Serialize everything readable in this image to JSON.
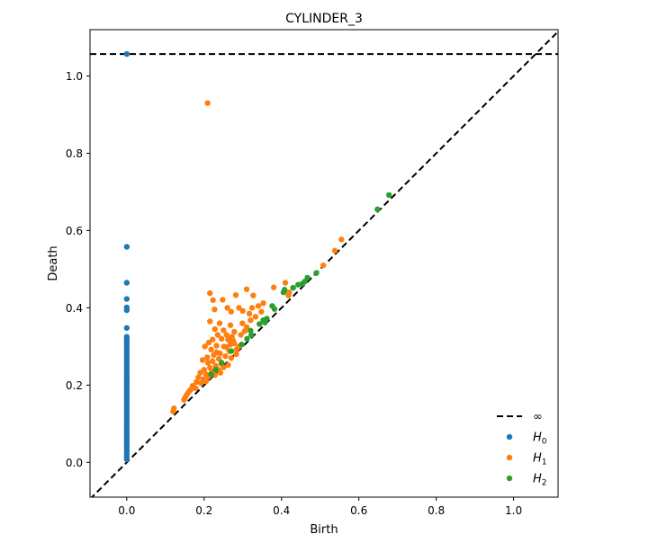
{
  "chart_data": {
    "type": "scatter",
    "title": "CYLINDER_3",
    "xlabel": "Birth",
    "ylabel": "Death",
    "xlim": [
      -0.095,
      1.115
    ],
    "ylim": [
      -0.09,
      1.12
    ],
    "x_ticks": [
      0.0,
      0.2,
      0.4,
      0.6,
      0.8,
      1.0
    ],
    "y_ticks": [
      0.0,
      0.2,
      0.4,
      0.6,
      0.8,
      1.0
    ],
    "x_tick_labels": [
      "0.0",
      "0.2",
      "0.4",
      "0.6",
      "0.8",
      "1.0"
    ],
    "y_tick_labels": [
      "0.0",
      "0.2",
      "0.4",
      "0.6",
      "0.8",
      "1.0"
    ],
    "infinity_death": 1.057,
    "diagonal": true,
    "grid": false,
    "legend_position": "bottom-right",
    "legend": [
      {
        "label": "∞",
        "kind": "dashed-line",
        "color": "#000000"
      },
      {
        "label": "H",
        "sub": "0",
        "kind": "point",
        "color": "#1f77b4"
      },
      {
        "label": "H",
        "sub": "1",
        "kind": "point",
        "color": "#ff7f0e"
      },
      {
        "label": "H",
        "sub": "2",
        "kind": "point",
        "color": "#2ca02c"
      }
    ],
    "series": [
      {
        "name": "H0",
        "color": "#1f77b4",
        "points": [
          [
            0,
            1.057
          ],
          [
            0,
            0.558
          ],
          [
            0,
            0.465
          ],
          [
            0,
            0.423
          ],
          [
            0,
            0.401
          ],
          [
            0,
            0.394
          ],
          [
            0,
            0.348
          ],
          [
            0,
            0.325
          ],
          [
            0,
            0.318
          ],
          [
            0,
            0.311
          ],
          [
            0,
            0.305
          ],
          [
            0,
            0.298
          ],
          [
            0,
            0.291
          ],
          [
            0,
            0.284
          ],
          [
            0,
            0.278
          ],
          [
            0,
            0.271
          ],
          [
            0,
            0.264
          ],
          [
            0,
            0.257
          ],
          [
            0,
            0.25
          ],
          [
            0,
            0.244
          ],
          [
            0,
            0.237
          ],
          [
            0,
            0.23
          ],
          [
            0,
            0.223
          ],
          [
            0,
            0.217
          ],
          [
            0,
            0.21
          ],
          [
            0,
            0.203
          ],
          [
            0,
            0.196
          ],
          [
            0,
            0.19
          ],
          [
            0,
            0.183
          ],
          [
            0,
            0.176
          ],
          [
            0,
            0.169
          ],
          [
            0,
            0.163
          ],
          [
            0,
            0.156
          ],
          [
            0,
            0.149
          ],
          [
            0,
            0.142
          ],
          [
            0,
            0.136
          ],
          [
            0,
            0.129
          ],
          [
            0,
            0.122
          ],
          [
            0,
            0.115
          ],
          [
            0,
            0.109
          ],
          [
            0,
            0.102
          ],
          [
            0,
            0.095
          ],
          [
            0,
            0.088
          ],
          [
            0,
            0.082
          ],
          [
            0,
            0.075
          ],
          [
            0,
            0.068
          ],
          [
            0,
            0.061
          ],
          [
            0,
            0.055
          ],
          [
            0,
            0.048
          ],
          [
            0,
            0.041
          ],
          [
            0,
            0.034
          ],
          [
            0,
            0.028
          ],
          [
            0,
            0.021
          ],
          [
            0,
            0.014
          ],
          [
            0,
            0.008
          ]
        ]
      },
      {
        "name": "H1",
        "color": "#ff7f0e",
        "points": [
          [
            0.209,
            0.93
          ],
          [
            0.555,
            0.577
          ],
          [
            0.538,
            0.548
          ],
          [
            0.508,
            0.51
          ],
          [
            0.418,
            0.432
          ],
          [
            0.42,
            0.44
          ],
          [
            0.41,
            0.465
          ],
          [
            0.38,
            0.453
          ],
          [
            0.31,
            0.448
          ],
          [
            0.327,
            0.432
          ],
          [
            0.282,
            0.433
          ],
          [
            0.215,
            0.438
          ],
          [
            0.223,
            0.42
          ],
          [
            0.248,
            0.421
          ],
          [
            0.227,
            0.396
          ],
          [
            0.29,
            0.4
          ],
          [
            0.3,
            0.392
          ],
          [
            0.324,
            0.4
          ],
          [
            0.34,
            0.405
          ],
          [
            0.353,
            0.412
          ],
          [
            0.333,
            0.377
          ],
          [
            0.317,
            0.385
          ],
          [
            0.348,
            0.39
          ],
          [
            0.26,
            0.4
          ],
          [
            0.27,
            0.39
          ],
          [
            0.299,
            0.36
          ],
          [
            0.268,
            0.355
          ],
          [
            0.24,
            0.36
          ],
          [
            0.215,
            0.365
          ],
          [
            0.228,
            0.345
          ],
          [
            0.25,
            0.342
          ],
          [
            0.278,
            0.338
          ],
          [
            0.305,
            0.34
          ],
          [
            0.258,
            0.33
          ],
          [
            0.262,
            0.318
          ],
          [
            0.272,
            0.325
          ],
          [
            0.235,
            0.33
          ],
          [
            0.245,
            0.32
          ],
          [
            0.222,
            0.318
          ],
          [
            0.212,
            0.31
          ],
          [
            0.202,
            0.3
          ],
          [
            0.218,
            0.292
          ],
          [
            0.232,
            0.302
          ],
          [
            0.251,
            0.3
          ],
          [
            0.278,
            0.308
          ],
          [
            0.284,
            0.292
          ],
          [
            0.29,
            0.3
          ],
          [
            0.265,
            0.288
          ],
          [
            0.241,
            0.282
          ],
          [
            0.225,
            0.278
          ],
          [
            0.208,
            0.272
          ],
          [
            0.196,
            0.265
          ],
          [
            0.21,
            0.258
          ],
          [
            0.222,
            0.262
          ],
          [
            0.238,
            0.268
          ],
          [
            0.255,
            0.275
          ],
          [
            0.27,
            0.27
          ],
          [
            0.283,
            0.28
          ],
          [
            0.245,
            0.255
          ],
          [
            0.23,
            0.25
          ],
          [
            0.215,
            0.245
          ],
          [
            0.2,
            0.24
          ],
          [
            0.19,
            0.232
          ],
          [
            0.205,
            0.228
          ],
          [
            0.22,
            0.235
          ],
          [
            0.236,
            0.24
          ],
          [
            0.25,
            0.246
          ],
          [
            0.262,
            0.252
          ],
          [
            0.185,
            0.22
          ],
          [
            0.198,
            0.215
          ],
          [
            0.212,
            0.222
          ],
          [
            0.228,
            0.226
          ],
          [
            0.242,
            0.232
          ],
          [
            0.18,
            0.208
          ],
          [
            0.17,
            0.198
          ],
          [
            0.192,
            0.205
          ],
          [
            0.205,
            0.21
          ],
          [
            0.165,
            0.188
          ],
          [
            0.178,
            0.192
          ],
          [
            0.155,
            0.175
          ],
          [
            0.16,
            0.182
          ],
          [
            0.151,
            0.168
          ],
          [
            0.148,
            0.162
          ],
          [
            0.122,
            0.14
          ],
          [
            0.12,
            0.132
          ],
          [
            0.275,
            0.315
          ],
          [
            0.295,
            0.33
          ],
          [
            0.31,
            0.35
          ],
          [
            0.32,
            0.368
          ],
          [
            0.258,
            0.298
          ],
          [
            0.232,
            0.285
          ],
          [
            0.268,
            0.305
          ]
        ]
      },
      {
        "name": "H2",
        "color": "#2ca02c",
        "points": [
          [
            0.678,
            0.692
          ],
          [
            0.648,
            0.655
          ],
          [
            0.49,
            0.49
          ],
          [
            0.453,
            0.462
          ],
          [
            0.467,
            0.478
          ],
          [
            0.46,
            0.468
          ],
          [
            0.443,
            0.46
          ],
          [
            0.43,
            0.452
          ],
          [
            0.405,
            0.44
          ],
          [
            0.408,
            0.447
          ],
          [
            0.376,
            0.405
          ],
          [
            0.382,
            0.397
          ],
          [
            0.362,
            0.372
          ],
          [
            0.353,
            0.368
          ],
          [
            0.357,
            0.362
          ],
          [
            0.343,
            0.358
          ],
          [
            0.32,
            0.341
          ],
          [
            0.322,
            0.33
          ],
          [
            0.311,
            0.32
          ],
          [
            0.297,
            0.305
          ],
          [
            0.27,
            0.288
          ],
          [
            0.245,
            0.258
          ],
          [
            0.23,
            0.24
          ],
          [
            0.218,
            0.228
          ]
        ]
      }
    ]
  }
}
